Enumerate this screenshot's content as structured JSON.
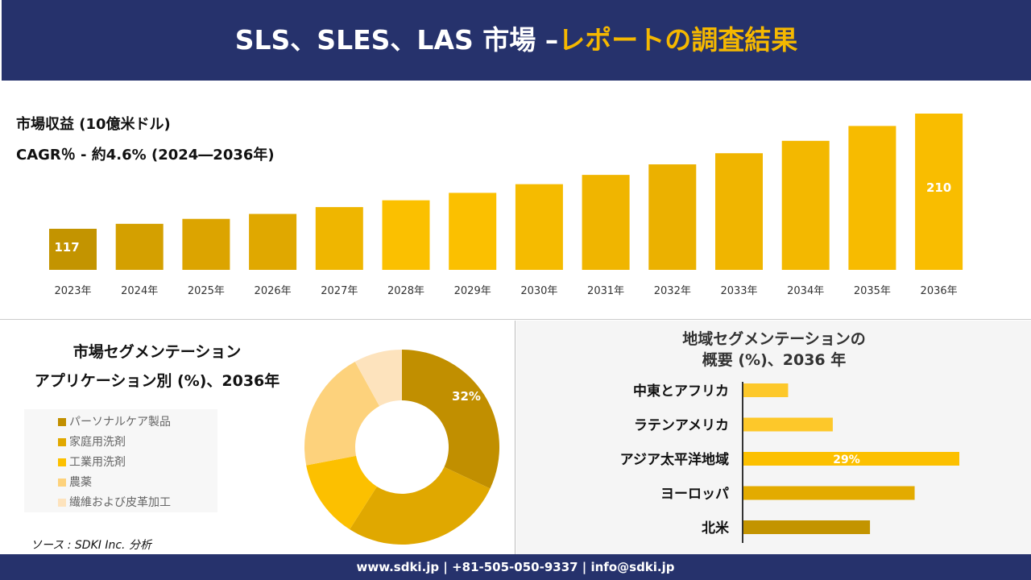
{
  "header": {
    "title_main": "SLS、SLES、LAS 市場 –",
    "title_accent": "レポートの調査結果"
  },
  "colors": {
    "navy": "#26326c",
    "gold": "#f5b800"
  },
  "revenue": {
    "label": "市場収益 (10億米ドル)",
    "cagr": "CAGR％ - 約4.6% (2024―2036年)"
  },
  "application": {
    "title1": "市場セグメンテーション",
    "title2": "アプリケーション別 (%)、2036年"
  },
  "region": {
    "title1": "地域セグメンテーションの",
    "title2": "概要 (%)、2036 年"
  },
  "source": "ソース : SDKI Inc. 分析",
  "footer": "www.sdki.jp | +81-505-050-9337 | info@sdki.jp",
  "chart_data": [
    {
      "type": "bar",
      "categories": [
        "2023年",
        "2024年",
        "2025年",
        "2026年",
        "2027年",
        "2028年",
        "2029年",
        "2030年",
        "2031年",
        "2032年",
        "2033年",
        "2034年",
        "2035年",
        "2036年"
      ],
      "values": [
        117,
        121,
        125,
        129,
        134.5,
        140,
        146,
        153,
        160.5,
        169,
        178,
        188,
        200,
        210
      ],
      "data_labels": {
        "0": "117",
        "13": "210"
      },
      "colors": [
        "#c39400",
        "#d4a000",
        "#dca400",
        "#e0a800",
        "#efb600",
        "#fbc000",
        "#fbc000",
        "#f5bb00",
        "#f0b500",
        "#ebb100",
        "#f0b500",
        "#f3b800",
        "#f7bb00",
        "#f9bd00"
      ]
    },
    {
      "type": "pie",
      "donut": true,
      "labels": [
        "パーソナルケア製品",
        "家庭用洗剤",
        "工業用洗剤",
        "農薬",
        "繊維および皮革加工"
      ],
      "values": [
        32,
        27,
        13,
        20,
        8
      ],
      "data_labels": {
        "0": "32%"
      },
      "colors": [
        "#c18f00",
        "#e0a800",
        "#fcc000",
        "#fdd27c",
        "#fde3bd"
      ]
    },
    {
      "type": "bar",
      "orientation": "horizontal",
      "categories": [
        "中東とアフリカ",
        "ラテンアメリカ",
        "アジア太平洋地域",
        "ヨーロッパ",
        "北米"
      ],
      "values": [
        6,
        12,
        29,
        23,
        17
      ],
      "data_labels": {
        "2": "29%"
      },
      "colors": [
        "#fdc82a",
        "#fdc82a",
        "#fcc000",
        "#e3ab00",
        "#c39400"
      ]
    }
  ]
}
